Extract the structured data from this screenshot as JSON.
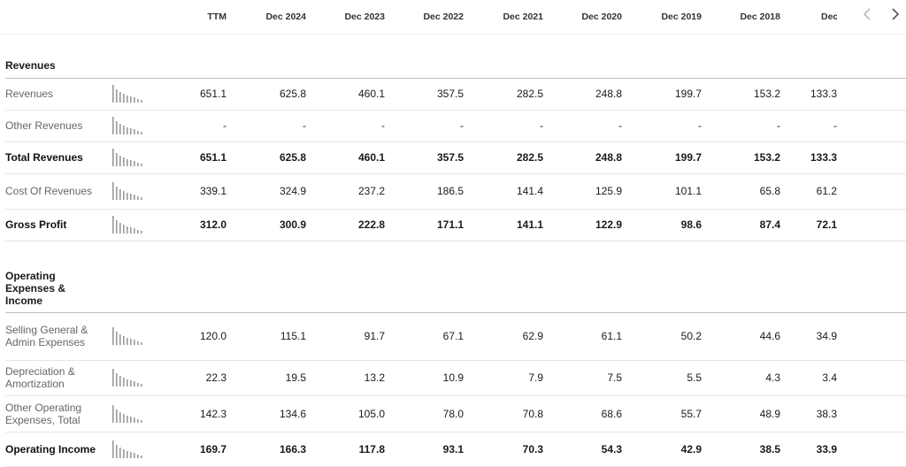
{
  "columns": [
    "TTM",
    "Dec 2024",
    "Dec 2023",
    "Dec 2022",
    "Dec 2021",
    "Dec 2020",
    "Dec 2019",
    "Dec 2018",
    "Dec"
  ],
  "icons": {
    "prev": "chevron-left-icon",
    "next": "chevron-right-icon"
  },
  "sections": [
    {
      "title": "Revenues",
      "rows": [
        {
          "label": "Revenues",
          "bold": false,
          "values": [
            "651.1",
            "625.8",
            "460.1",
            "357.5",
            "282.5",
            "248.8",
            "199.7",
            "153.2",
            "133.3"
          ]
        },
        {
          "label": "Other Revenues",
          "bold": false,
          "values": [
            "-",
            "-",
            "-",
            "-",
            "-",
            "-",
            "-",
            "-",
            "-"
          ]
        },
        {
          "label": "Total Revenues",
          "bold": true,
          "values": [
            "651.1",
            "625.8",
            "460.1",
            "357.5",
            "282.5",
            "248.8",
            "199.7",
            "153.2",
            "133.3"
          ]
        },
        {
          "label": "Cost Of Revenues",
          "bold": false,
          "values": [
            "339.1",
            "324.9",
            "237.2",
            "186.5",
            "141.4",
            "125.9",
            "101.1",
            "65.8",
            "61.2"
          ]
        },
        {
          "label": "Gross Profit",
          "bold": true,
          "values": [
            "312.0",
            "300.9",
            "222.8",
            "171.1",
            "141.1",
            "122.9",
            "98.6",
            "87.4",
            "72.1"
          ]
        }
      ]
    },
    {
      "title": "Operating Expenses & Income",
      "rows": [
        {
          "label": "Selling General & Admin Expenses",
          "bold": false,
          "values": [
            "120.0",
            "115.1",
            "91.7",
            "67.1",
            "62.9",
            "61.1",
            "50.2",
            "44.6",
            "34.9"
          ]
        },
        {
          "label": "Depreciation & Amortization",
          "bold": false,
          "values": [
            "22.3",
            "19.5",
            "13.2",
            "10.9",
            "7.9",
            "7.5",
            "5.5",
            "4.3",
            "3.4"
          ]
        },
        {
          "label": "Other Operating Expenses, Total",
          "bold": false,
          "values": [
            "142.3",
            "134.6",
            "105.0",
            "78.0",
            "70.8",
            "68.6",
            "55.7",
            "48.9",
            "38.3"
          ]
        },
        {
          "label": "Operating Income",
          "bold": true,
          "values": [
            "169.7",
            "166.3",
            "117.8",
            "93.1",
            "70.3",
            "54.3",
            "42.9",
            "38.5",
            "33.9"
          ]
        }
      ]
    }
  ]
}
